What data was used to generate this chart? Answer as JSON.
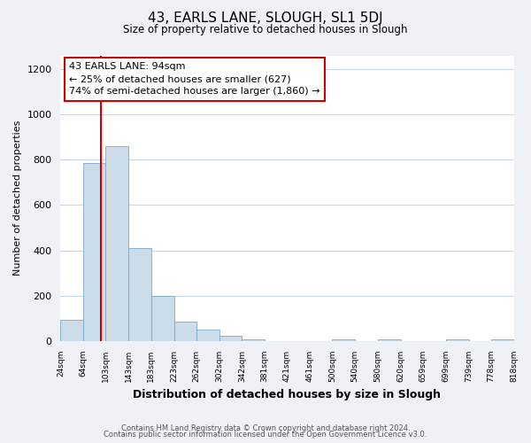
{
  "title": "43, EARLS LANE, SLOUGH, SL1 5DJ",
  "subtitle": "Size of property relative to detached houses in Slough",
  "xlabel": "Distribution of detached houses by size in Slough",
  "ylabel": "Number of detached properties",
  "footer_line1": "Contains HM Land Registry data © Crown copyright and database right 2024.",
  "footer_line2": "Contains public sector information licensed under the Open Government Licence v3.0.",
  "annotation_title": "43 EARLS LANE: 94sqm",
  "annotation_line1": "← 25% of detached houses are smaller (627)",
  "annotation_line2": "74% of semi-detached houses are larger (1,860) →",
  "bar_edges": [
    24,
    64,
    103,
    143,
    183,
    223,
    262,
    302,
    342,
    381,
    421,
    461,
    500,
    540,
    580,
    620,
    659,
    699,
    739,
    778,
    818
  ],
  "bar_heights": [
    93,
    785,
    860,
    410,
    200,
    88,
    52,
    22,
    10,
    0,
    0,
    0,
    9,
    0,
    8,
    0,
    0,
    9,
    0,
    8
  ],
  "bar_color": "#ccdce8",
  "bar_edgecolor": "#7aaac8",
  "vline_x": 94,
  "vline_color": "#cc0000",
  "ylim": [
    0,
    1260
  ],
  "yticks": [
    0,
    200,
    400,
    600,
    800,
    1000,
    1200
  ],
  "tick_labels": [
    "24sqm",
    "64sqm",
    "103sqm",
    "143sqm",
    "183sqm",
    "223sqm",
    "262sqm",
    "302sqm",
    "342sqm",
    "381sqm",
    "421sqm",
    "461sqm",
    "500sqm",
    "540sqm",
    "580sqm",
    "620sqm",
    "659sqm",
    "699sqm",
    "739sqm",
    "778sqm",
    "818sqm"
  ],
  "bg_color": "#eef2f7",
  "plot_bg_color": "#ffffff",
  "grid_color": "#c8d8e8"
}
